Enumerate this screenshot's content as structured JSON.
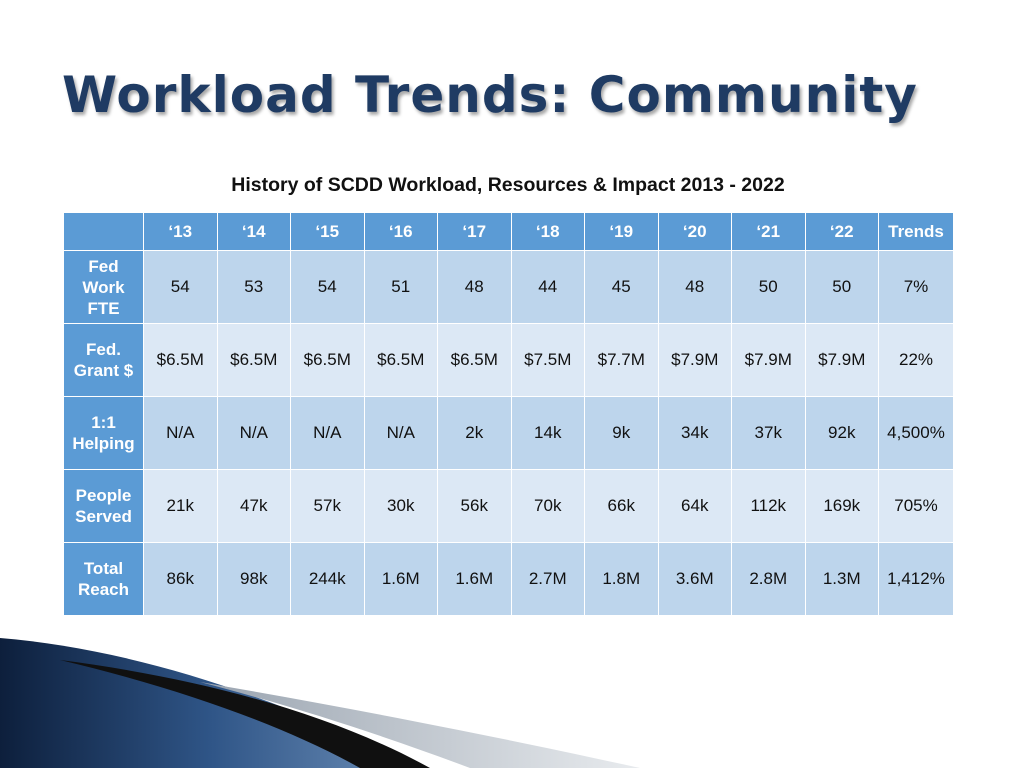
{
  "slide": {
    "title": "Workload Trends: Community",
    "caption": "History of SCDD Workload, Resources & Impact 2013 - 2022"
  },
  "table": {
    "corner": "",
    "headers": [
      "‘13",
      "‘14",
      "‘15",
      "‘16",
      "‘17",
      "‘18",
      "‘19",
      "‘20",
      "‘21",
      "‘22",
      "Trends"
    ],
    "rows": [
      {
        "label": "Fed\nWork\nFTE",
        "values": [
          "54",
          "53",
          "54",
          "51",
          "48",
          "44",
          "45",
          "48",
          "50",
          "50"
        ],
        "trend": "7%",
        "trend_direction": "down"
      },
      {
        "label": "Fed.\nGrant $",
        "values": [
          "$6.5M",
          "$6.5M",
          "$6.5M",
          "$6.5M",
          "$6.5M",
          "$7.5M",
          "$7.7M",
          "$7.9M",
          "$7.9M",
          "$7.9M"
        ],
        "trend": "22%",
        "trend_direction": "up"
      },
      {
        "label": "1:1\nHelping",
        "values": [
          "N/A",
          "N/A",
          "N/A",
          "N/A",
          "2k",
          "14k",
          "9k",
          "34k",
          "37k",
          "92k"
        ],
        "trend": "4,500%",
        "trend_direction": "up"
      },
      {
        "label": "People\nServed",
        "values": [
          "21k",
          "47k",
          "57k",
          "30k",
          "56k",
          "70k",
          "66k",
          "64k",
          "112k",
          "169k"
        ],
        "trend": "705%",
        "trend_direction": "up"
      },
      {
        "label": "Total\nReach",
        "values": [
          "86k",
          "98k",
          "244k",
          "1.6M",
          "1.6M",
          "2.7M",
          "1.8M",
          "3.6M",
          "2.8M",
          "1.3M"
        ],
        "trend": "1,412%",
        "trend_direction": "up"
      }
    ]
  },
  "colors": {
    "title": "#1f3b63",
    "header_blue": "#5b9bd5",
    "cell_dark": "#bdd5ec",
    "cell_light": "#dce8f5",
    "arrow_up": "#1e9e4a",
    "arrow_down": "#c0182a"
  },
  "icons": {
    "up": "green-up-arrow-icon",
    "down": "red-down-arrow-icon"
  }
}
